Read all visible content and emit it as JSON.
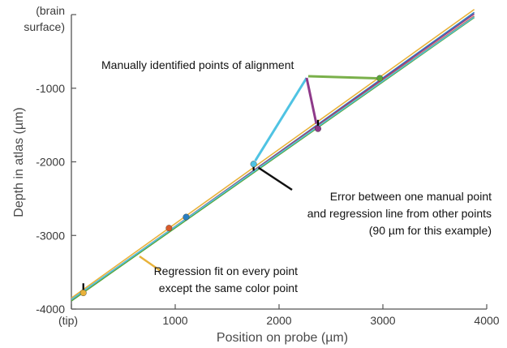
{
  "chart_data": {
    "type": "line",
    "xlabel": "Position on probe (µm)",
    "ylabel": "Depth in atlas (µm)",
    "xlim": [
      0,
      4000
    ],
    "ylim": [
      -4000,
      0
    ],
    "x_ticks": [
      "0",
      "1000",
      "2000",
      "3000",
      "4000"
    ],
    "y_ticks": [
      "0",
      "-1000",
      "-2000",
      "-3000",
      "-4000"
    ],
    "x_tick_labels": [
      "(tip)",
      "1000",
      "2000",
      "3000",
      "4000"
    ],
    "y_tick_labels": [
      "(brain\nsurface)",
      "-1000",
      "-2000",
      "-3000",
      "-4000"
    ],
    "series": [
      {
        "color": "#e8b23a",
        "x": [
          0,
          3880
        ],
        "y": [
          -3850,
          70
        ]
      },
      {
        "color": "#2a7fc0",
        "x": [
          0,
          3880
        ],
        "y": [
          -3890,
          30
        ]
      },
      {
        "color": "#8e3a8a",
        "x": [
          0,
          3880
        ],
        "y": [
          -3880,
          10
        ]
      },
      {
        "color": "#5aa63a",
        "x": [
          0,
          3880
        ],
        "y": [
          -3890,
          -40
        ]
      },
      {
        "color": "#d95a2a",
        "x": [
          0,
          3880
        ],
        "y": [
          -3870,
          -20
        ]
      },
      {
        "color": "#4fc3e3",
        "x": [
          0,
          3880
        ],
        "y": [
          -3870,
          -30
        ]
      }
    ],
    "points": [
      {
        "x": 115,
        "y": -3780,
        "color": "#e8b23a"
      },
      {
        "x": 940,
        "y": -2900,
        "color": "#d95a2a"
      },
      {
        "x": 1105,
        "y": -2750,
        "color": "#2a7fc0"
      },
      {
        "x": 1755,
        "y": -2030,
        "color": "#4fc3e3"
      },
      {
        "x": 2375,
        "y": -1550,
        "color": "#8e3a8a"
      },
      {
        "x": 2970,
        "y": -865,
        "color": "#5aa63a"
      }
    ],
    "error_markers": [
      {
        "x": 115,
        "y0": -3650,
        "y1": -3750
      },
      {
        "x": 1755,
        "y0": -2060,
        "y1": -2120
      },
      {
        "x": 2375,
        "y0": -1430,
        "y1": -1520
      },
      {
        "x": 2970,
        "y0": -850,
        "y1": -880
      }
    ],
    "annotations": [
      {
        "id": "alignment",
        "lines": [
          "Manually identified points of alignment"
        ]
      },
      {
        "id": "error",
        "lines": [
          "Error between one manual point",
          "and regression line from other points",
          "(90 µm for this example)"
        ]
      },
      {
        "id": "regression",
        "lines": [
          "Regression fit on every point",
          "except the same color point"
        ]
      }
    ]
  }
}
